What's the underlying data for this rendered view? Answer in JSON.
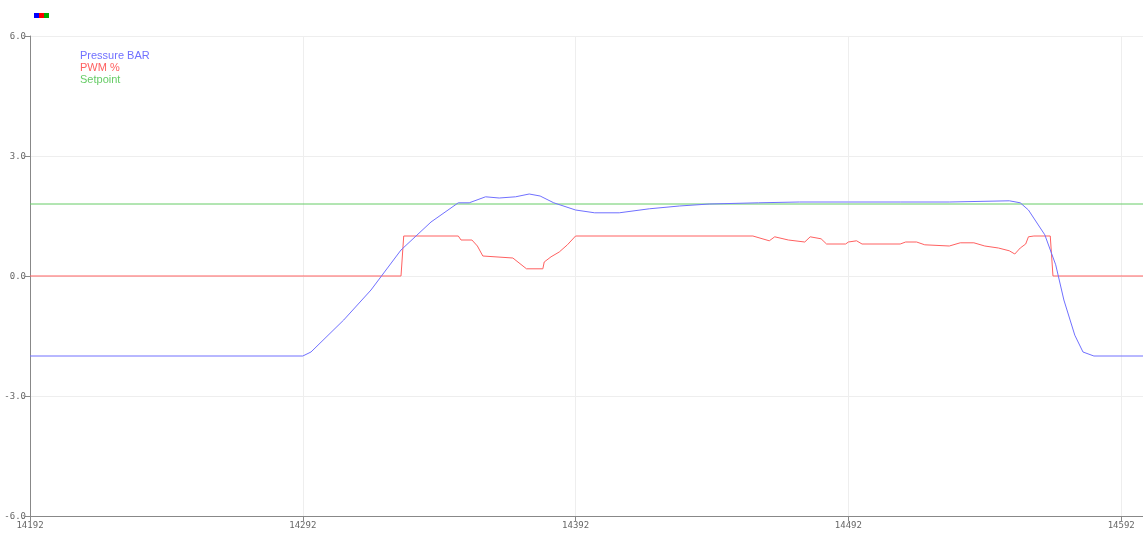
{
  "chart_data": {
    "type": "line",
    "xlim": [
      14192,
      14600
    ],
    "ylim": [
      -6,
      6
    ],
    "xticks": [
      14192,
      14292,
      14392,
      14492,
      14592
    ],
    "yticks": [
      {
        "value": -6,
        "label": "-6.0"
      },
      {
        "value": -3,
        "label": "-3.0"
      },
      {
        "value": 0,
        "label": "0.0"
      },
      {
        "value": 3,
        "label": "3.0"
      },
      {
        "value": 6,
        "label": "6.0"
      }
    ],
    "grid": true,
    "legend": "top left",
    "marker": "none",
    "line_style": "solid",
    "series": [
      {
        "name": "Pressure BAR",
        "color": "#7070ff",
        "x": [
          14192,
          14292,
          14295,
          14307,
          14317,
          14328,
          14339,
          14349,
          14353,
          14359,
          14364,
          14370,
          14375,
          14379,
          14384,
          14392,
          14399,
          14408,
          14419,
          14430,
          14441,
          14459,
          14474,
          14492,
          14511,
          14529,
          14551,
          14555,
          14558,
          14564,
          14568,
          14571,
          14575,
          14578,
          14582,
          14600
        ],
        "values": [
          -2,
          -2,
          -1.9,
          -1.1,
          -0.35,
          0.65,
          1.35,
          1.83,
          1.83,
          1.98,
          1.95,
          1.98,
          2.05,
          2.0,
          1.83,
          1.65,
          1.58,
          1.58,
          1.68,
          1.75,
          1.8,
          1.83,
          1.85,
          1.85,
          1.85,
          1.85,
          1.88,
          1.83,
          1.65,
          1.03,
          0.28,
          -0.6,
          -1.48,
          -1.9,
          -2,
          -2
        ]
      },
      {
        "name": "PWM %",
        "color": "#ff6060",
        "x": [
          14192,
          14328,
          14329,
          14349,
          14350,
          14354,
          14356,
          14358,
          14369,
          14374,
          14380,
          14380.5,
          14383,
          14386,
          14389,
          14392,
          14457,
          14463,
          14465,
          14470,
          14476,
          14478,
          14482,
          14484,
          14491,
          14492,
          14495,
          14497,
          14511,
          14513,
          14517,
          14520,
          14529,
          14533,
          14538,
          14542,
          14547,
          14551,
          14553,
          14555,
          14557,
          14558,
          14560,
          14566,
          14567,
          14600
        ],
        "values": [
          0,
          0,
          1,
          1,
          0.9,
          0.9,
          0.75,
          0.5,
          0.45,
          0.18,
          0.18,
          0.35,
          0.48,
          0.6,
          0.78,
          1,
          1,
          0.88,
          0.98,
          0.9,
          0.85,
          0.98,
          0.93,
          0.8,
          0.8,
          0.85,
          0.88,
          0.8,
          0.8,
          0.85,
          0.85,
          0.78,
          0.75,
          0.83,
          0.83,
          0.75,
          0.7,
          0.63,
          0.55,
          0.7,
          0.8,
          0.98,
          1,
          1,
          0,
          0
        ]
      },
      {
        "name": "Setpoint",
        "color": "#66cc66",
        "x": [
          14192,
          14600
        ],
        "values": [
          1.8,
          1.8
        ]
      }
    ]
  }
}
